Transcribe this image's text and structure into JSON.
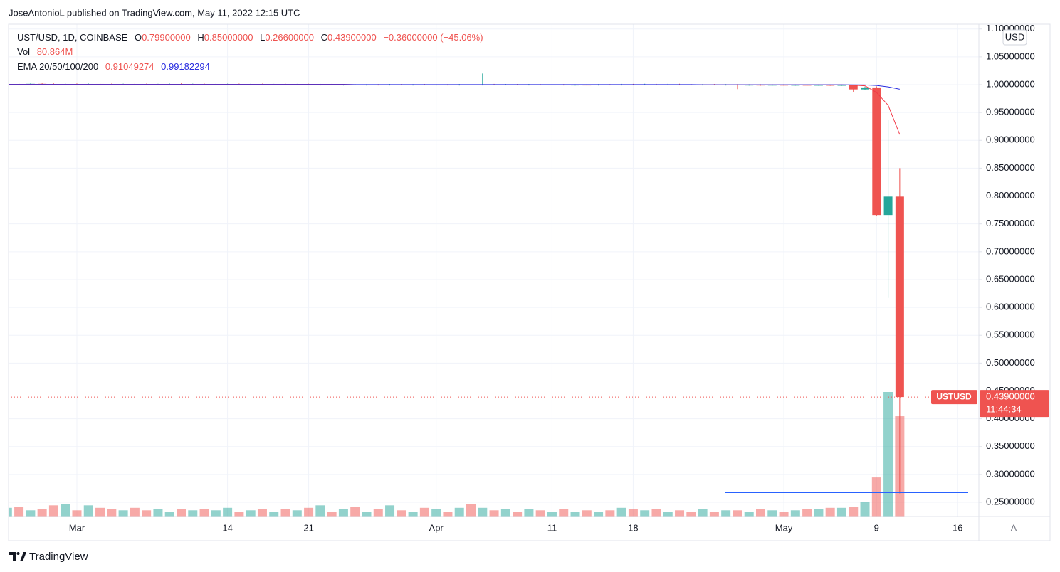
{
  "header": {
    "publisher": "JoseAntonioL published on TradingView.com, May 11, 2022 12:15 UTC",
    "brand": "TradingView"
  },
  "chart_data": {
    "type": "candlestick",
    "title": "UST/USD, 1D, COINBASE",
    "ohlc_legend": [
      {
        "label": "O",
        "value": "0.79900000"
      },
      {
        "label": "H",
        "value": "0.85000000"
      },
      {
        "label": "L",
        "value": "0.26600000"
      },
      {
        "label": "C",
        "value": "0.43900000"
      }
    ],
    "change": "−0.36000000 (−45.06%)",
    "volume_legend": {
      "label": "Vol",
      "value": "80.864M"
    },
    "ema_legend": {
      "label": "EMA 20/50/100/200",
      "values": [
        "0.91049274",
        "0.99182294"
      ]
    },
    "currency": "USD",
    "price_label": {
      "symbol": "USTUSD",
      "value": "0.43900000",
      "countdown": "11:44:34"
    },
    "scale_mode": "A",
    "categories": [
      null,
      null,
      null,
      null,
      null,
      null,
      "Mar",
      null,
      null,
      null,
      null,
      null,
      null,
      null,
      null,
      null,
      null,
      null,
      null,
      "14",
      null,
      null,
      null,
      null,
      null,
      null,
      "21",
      null,
      null,
      null,
      null,
      null,
      null,
      null,
      null,
      null,
      null,
      "Apr",
      null,
      null,
      null,
      null,
      null,
      null,
      null,
      null,
      null,
      "11",
      null,
      null,
      null,
      null,
      null,
      null,
      "18",
      null,
      null,
      null,
      null,
      null,
      null,
      null,
      null,
      null,
      null,
      null,
      null,
      "May",
      null,
      null,
      null,
      null,
      null,
      null,
      null,
      "9",
      null,
      null,
      null,
      null,
      null,
      null,
      "16",
      null
    ],
    "open": [
      1.0005,
      1.0012,
      1.0008,
      1.0015,
      1.001,
      1.0005,
      1.0011,
      1.0007,
      1.0013,
      1.0009,
      1.0004,
      1.001,
      1.0006,
      1.0002,
      1.0008,
      1.0011,
      1.0005,
      1.0009,
      1.0003,
      1.0007,
      1.001,
      1.0004,
      1.0008,
      1.0002,
      1.0006,
      1.0001,
      1.0005,
      0.9998,
      1.0003,
      0.9996,
      1.0001,
      0.9995,
      1.0,
      0.9997,
      1.0002,
      0.9996,
      1.0001,
      0.9995,
      1.0,
      0.9996,
      1.0002,
      0.9997,
      1.0003,
      0.9998,
      1.0002,
      0.9997,
      1.0001,
      0.9996,
      1.0,
      0.9995,
      0.9999,
      0.9996,
      1.0001,
      0.9997,
      1.0004,
      0.9999,
      1.0005,
      1.0,
      1.0006,
      1.0001,
      0.9998,
      1.0002,
      0.9997,
      1.0001,
      0.9994,
      0.9998,
      0.9993,
      0.9997,
      0.9992,
      0.9996,
      0.9991,
      0.9995,
      0.999,
      0.9994,
      0.9915,
      0.995,
      0.766,
      0.799,
      null,
      null,
      null,
      null,
      null,
      null
    ],
    "high": [
      1.0022,
      1.0022,
      1.0022,
      1.0024,
      1.0022,
      1.002,
      1.0022,
      1.002,
      1.0024,
      1.002,
      1.0018,
      1.002,
      1.0018,
      1.0016,
      1.002,
      1.0022,
      1.0018,
      1.002,
      1.0016,
      1.0018,
      1.002,
      1.0016,
      1.0018,
      1.0014,
      1.0016,
      1.0014,
      1.0016,
      1.0014,
      1.0014,
      1.0012,
      1.0012,
      1.001,
      1.001,
      1.0012,
      1.0012,
      1.001,
      1.0012,
      1.001,
      1.001,
      1.0012,
      1.0012,
      1.02,
      1.0014,
      1.0012,
      1.0012,
      1.0012,
      1.001,
      1.001,
      1.001,
      1.0008,
      1.0008,
      1.001,
      1.001,
      1.0014,
      1.0014,
      1.0016,
      1.0014,
      1.0016,
      1.0016,
      1.0012,
      1.0012,
      1.0012,
      1.001,
      1.001,
      1.0008,
      1.0008,
      1.0008,
      1.0008,
      1.0006,
      1.0006,
      1.0006,
      1.0004,
      1.0004,
      0.9998,
      0.9965,
      0.997,
      0.937,
      0.85,
      null,
      null,
      null,
      null,
      null,
      null
    ],
    "low": [
      0.9995,
      0.9998,
      0.9998,
      1.0,
      0.9996,
      0.9995,
      0.9997,
      0.9996,
      0.9999,
      0.9995,
      0.9993,
      0.9996,
      0.9994,
      0.999,
      0.9996,
      0.9996,
      0.9993,
      0.9994,
      0.9991,
      0.9994,
      0.9995,
      0.9992,
      0.9993,
      0.999,
      0.9993,
      0.999,
      0.9991,
      0.9986,
      0.9989,
      0.9985,
      0.9988,
      0.9984,
      0.9986,
      0.9986,
      0.9988,
      0.9985,
      0.9988,
      0.9984,
      0.9986,
      0.9985,
      0.9988,
      0.9986,
      0.999,
      0.9987,
      0.9988,
      0.9986,
      0.9988,
      0.9985,
      0.9986,
      0.9984,
      0.9986,
      0.9985,
      0.9987,
      0.9986,
      0.999,
      0.9988,
      0.9992,
      0.999,
      0.9991,
      0.9988,
      0.9986,
      0.9987,
      0.9985,
      0.992,
      0.9983,
      0.9983,
      0.9982,
      0.9982,
      0.9981,
      0.9981,
      0.998,
      0.9979,
      0.9979,
      0.986,
      0.9905,
      0.765,
      0.617,
      0.266,
      null,
      null,
      null,
      null,
      null,
      null
    ],
    "close": [
      1.0012,
      1.0008,
      1.0015,
      1.001,
      1.0005,
      1.0011,
      1.0007,
      1.0013,
      1.0009,
      1.0004,
      1.001,
      1.0006,
      1.0002,
      1.0008,
      1.0011,
      1.0005,
      1.0009,
      1.0003,
      1.0007,
      1.001,
      1.0004,
      1.0008,
      1.0002,
      1.0006,
      1.0001,
      1.0005,
      0.9998,
      1.0003,
      0.9996,
      1.0001,
      0.9995,
      1.0,
      0.9997,
      1.0002,
      0.9996,
      1.0001,
      0.9995,
      1.0,
      0.9996,
      1.0002,
      0.9997,
      1.0003,
      0.9998,
      1.0002,
      0.9997,
      1.0001,
      0.9996,
      1.0,
      0.9995,
      0.9999,
      0.9996,
      1.0001,
      0.9997,
      1.0004,
      0.9999,
      1.0005,
      1.0,
      1.0006,
      1.0001,
      0.9998,
      1.0002,
      0.9997,
      1.0001,
      0.9994,
      0.9998,
      0.9993,
      0.9997,
      0.9992,
      0.9996,
      0.9991,
      0.9995,
      0.999,
      0.9994,
      0.9915,
      0.995,
      0.766,
      0.799,
      0.439,
      null,
      null,
      null,
      null,
      null,
      null
    ],
    "volume": [
      7,
      8,
      5,
      6,
      9,
      10,
      5,
      9,
      7,
      6,
      5,
      7,
      5,
      6,
      4,
      6,
      5,
      6,
      5,
      7,
      4,
      5,
      6,
      4,
      6,
      5,
      7,
      9,
      4,
      6,
      8,
      4,
      6,
      9,
      5,
      4,
      7,
      6,
      4,
      7,
      10,
      7,
      5,
      6,
      4,
      6,
      5,
      4,
      6,
      4,
      5,
      4,
      5,
      7,
      6,
      5,
      6,
      4,
      5,
      4,
      6,
      4,
      5,
      5,
      4,
      6,
      5,
      4,
      5,
      6,
      6,
      7,
      7,
      7.5,
      11.5,
      31.5,
      100.4,
      80.864,
      null,
      null,
      null,
      null,
      null,
      null
    ],
    "up_color": "#26a69a",
    "down_color": "#ef5350",
    "series": [
      {
        "color": "#f23645",
        "values": [
          1.0006,
          1.0006,
          1.0006,
          1.0006,
          1.0006,
          1.0006,
          1.0006,
          1.0006,
          1.0006,
          1.0006,
          1.0006,
          1.0006,
          1.0006,
          1.0006,
          1.0006,
          1.0006,
          1.0006,
          1.0006,
          1.0006,
          1.0006,
          1.0006,
          1.0006,
          1.0006,
          1.0006,
          1.0006,
          1.0006,
          1.0006,
          1.0006,
          1.0006,
          1.0006,
          1.0,
          1.0,
          1.0,
          1.0,
          1.0,
          1.0,
          1.0,
          1.0,
          1.0,
          1.0,
          1.0,
          1.0,
          1.0,
          1.0,
          1.0,
          1.0,
          1.0,
          1.0,
          1.0,
          1.0,
          1.0,
          1.0,
          1.0,
          1.0,
          1.0,
          1.0,
          1.0,
          1.0,
          1.0,
          1.0,
          0.9997,
          0.9997,
          0.9997,
          0.9997,
          0.9997,
          0.9997,
          0.9997,
          0.9997,
          0.9997,
          0.9997,
          0.9997,
          0.9997,
          0.9997,
          0.999,
          0.998,
          0.986,
          0.963,
          0.91049274,
          null,
          null,
          null,
          null,
          null,
          null
        ]
      },
      {
        "color": "#2a2ee0",
        "values": [
          1.0004,
          1.0004,
          1.0004,
          1.0004,
          1.0004,
          1.0004,
          1.0004,
          1.0004,
          1.0004,
          1.0004,
          1.0004,
          1.0004,
          1.0004,
          1.0004,
          1.0004,
          1.0004,
          1.0004,
          1.0004,
          1.0004,
          1.0004,
          1.0004,
          1.0004,
          1.0004,
          1.0004,
          1.0004,
          1.0004,
          1.0004,
          1.0004,
          1.0004,
          1.0004,
          1.0001,
          1.0001,
          1.0001,
          1.0001,
          1.0001,
          1.0001,
          1.0001,
          1.0001,
          1.0001,
          1.0001,
          1.0001,
          1.0001,
          1.0001,
          1.0001,
          1.0001,
          1.0001,
          1.0001,
          1.0001,
          1.0001,
          1.0001,
          1.0001,
          1.0001,
          1.0001,
          1.0001,
          1.0001,
          1.0001,
          1.0001,
          1.0001,
          1.0001,
          1.0001,
          0.9999,
          0.9999,
          0.9999,
          0.9999,
          0.9999,
          0.9999,
          0.9999,
          0.9999,
          0.9999,
          0.9999,
          0.9999,
          0.9999,
          0.9999,
          0.9997,
          0.9996,
          0.9985,
          0.996,
          0.99182294,
          null,
          null,
          null,
          null,
          null,
          null
        ]
      }
    ],
    "hline": {
      "value": 0.268,
      "color": "#2962ff"
    },
    "ylim": [
      0.2245,
      1.1086
    ],
    "yticks": [
      {
        "value": 1.1,
        "label": "1.10000000"
      },
      {
        "value": 1.05,
        "label": "1.05000000"
      },
      {
        "value": 1.0,
        "label": "1.00000000"
      },
      {
        "value": 0.95,
        "label": "0.95000000"
      },
      {
        "value": 0.9,
        "label": "0.90000000"
      },
      {
        "value": 0.85,
        "label": "0.85000000"
      },
      {
        "value": 0.8,
        "label": "0.80000000"
      },
      {
        "value": 0.75,
        "label": "0.75000000"
      },
      {
        "value": 0.7,
        "label": "0.70000000"
      },
      {
        "value": 0.65,
        "label": "0.65000000"
      },
      {
        "value": 0.6,
        "label": "0.60000000"
      },
      {
        "value": 0.55,
        "label": "0.55000000"
      },
      {
        "value": 0.5,
        "label": "0.50000000"
      },
      {
        "value": 0.45,
        "label": "0.45000000"
      },
      {
        "value": 0.4,
        "label": "0.40000000"
      },
      {
        "value": 0.35,
        "label": "0.35000000"
      },
      {
        "value": 0.3,
        "label": "0.30000000"
      },
      {
        "value": 0.25,
        "label": "0.25000000"
      }
    ],
    "grid": true
  }
}
